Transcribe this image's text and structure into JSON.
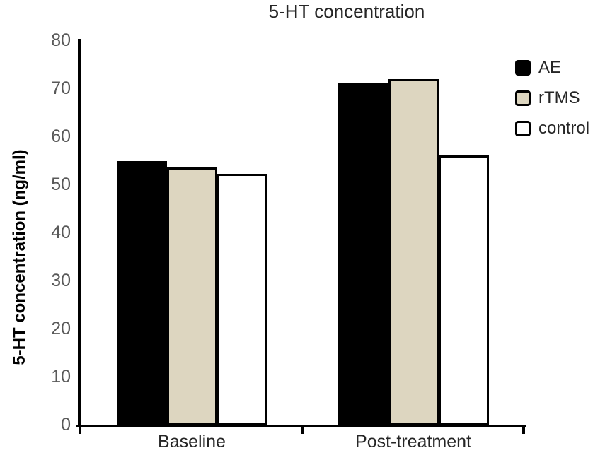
{
  "chart_data": {
    "type": "bar",
    "title": "5-HT concentration",
    "xlabel": "",
    "ylabel": "5-HT concentration (ng/ml)",
    "categories": [
      "Baseline",
      "Post-treatment"
    ],
    "series": [
      {
        "name": "AE",
        "values": [
          54.8,
          71.2
        ],
        "color": "#000000"
      },
      {
        "name": "rTMS",
        "values": [
          53.6,
          71.9
        ],
        "color": "#ddd6c0"
      },
      {
        "name": "control",
        "values": [
          52.2,
          56.0
        ],
        "color": "#ffffff"
      }
    ],
    "ylim": [
      0,
      80
    ],
    "yticks": [
      0,
      10,
      20,
      30,
      40,
      50,
      60,
      70,
      80
    ],
    "grid": false,
    "legend_position": "right"
  },
  "colors": {
    "axis": "#000000",
    "bar_border": "#000000",
    "tick_label_text": "#595959",
    "title_text": "#262626"
  }
}
